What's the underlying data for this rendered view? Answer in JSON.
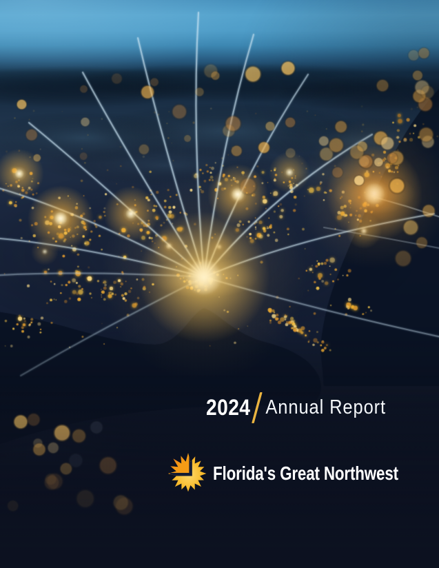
{
  "cover": {
    "year": "2024",
    "title": "Annual Report"
  },
  "logo": {
    "name": "Florida's Great Northwest",
    "icon": "sunburst-northwest-arrow-icon"
  },
  "divider": {
    "style": "gold-slash"
  },
  "colors": {
    "accent_gold": "#EAB440",
    "logo_yellow": "#F7BC2E",
    "logo_orange": "#E2611A",
    "sky_blue": "#4E9AC6",
    "night_navy": "#101828",
    "ray_blue": "#CFE4F0",
    "city_light_gold": "#F6B42A",
    "text_white": "#FFFFFF"
  },
  "background": {
    "scene": "night-satellite-view-of-southeastern-united-states-with-glowing-city-lights-and-light-trails-radiating-from-florida-panhandle"
  }
}
